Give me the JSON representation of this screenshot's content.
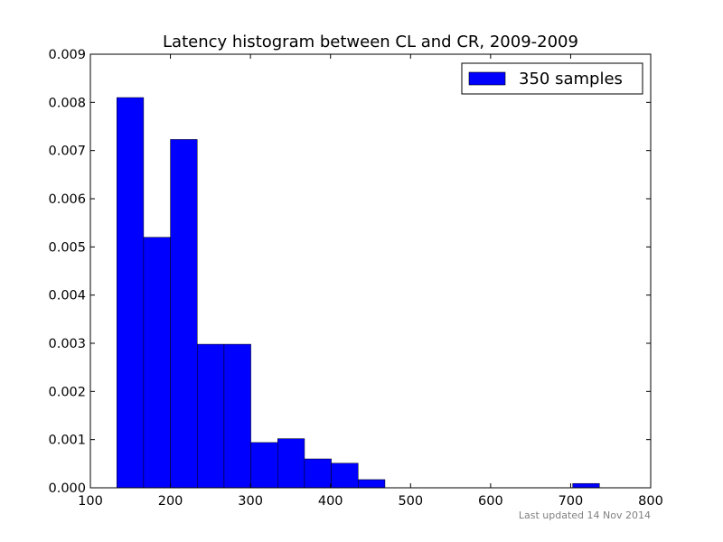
{
  "chart_data": {
    "type": "bar",
    "title": "Latency histogram between CL and CR, 2009-2009",
    "xlabel": "",
    "ylabel": "",
    "xlim": [
      100,
      800
    ],
    "ylim": [
      0,
      0.009
    ],
    "x_ticks": [
      100,
      200,
      300,
      400,
      500,
      600,
      700,
      800
    ],
    "y_ticks": [
      0.0,
      0.001,
      0.002,
      0.003,
      0.004,
      0.005,
      0.006,
      0.007,
      0.008,
      0.009
    ],
    "y_tick_labels": [
      "0.000",
      "0.001",
      "0.002",
      "0.003",
      "0.004",
      "0.005",
      "0.006",
      "0.007",
      "0.008",
      "0.009"
    ],
    "x_tick_labels": [
      "100",
      "200",
      "300",
      "400",
      "500",
      "600",
      "700",
      "800"
    ],
    "bin_edges": [
      133,
      166.5,
      200,
      233.5,
      267,
      300.5,
      334,
      367.5,
      401,
      434.5,
      468,
      501.5,
      535,
      568.5,
      602,
      635.5,
      669,
      702.5,
      736
    ],
    "series": [
      {
        "name": "350 samples",
        "color": "#0000ff",
        "values": [
          0.0081,
          0.0052,
          0.00723,
          0.00298,
          0.00298,
          0.00094,
          0.00102,
          0.0006,
          0.00051,
          0.00017,
          0,
          0,
          0,
          0,
          0,
          0,
          0,
          9e-05
        ]
      }
    ],
    "legend_position": "top-right",
    "grid": false
  },
  "footer": {
    "updated_text": "Last updated 14 Nov 2014"
  }
}
